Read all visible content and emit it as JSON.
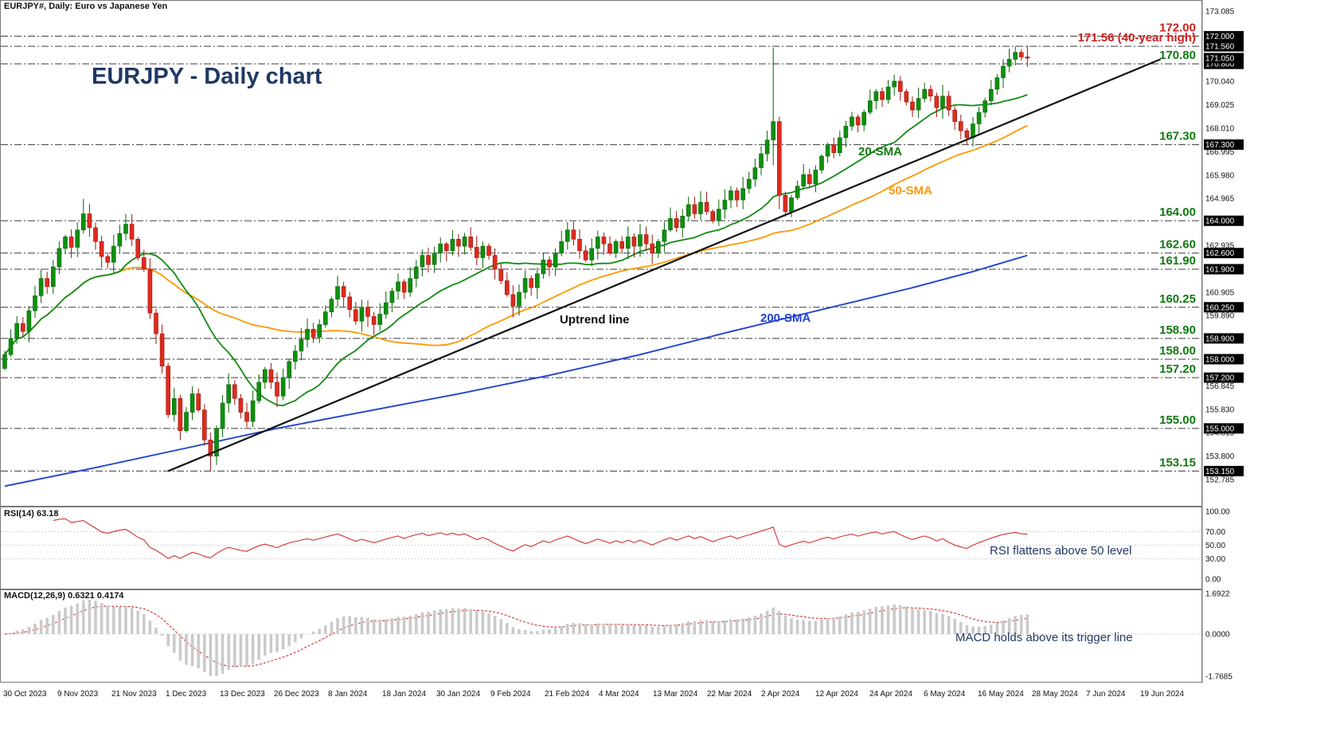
{
  "header": {
    "symbol_info": "EURJPY#, Daily:  Euro vs Japanese Yen"
  },
  "main": {
    "title": "EURJPY - Daily chart",
    "sma20_label": "20-SMA",
    "sma50_label": "50-SMA",
    "sma200_label": "200-SMA",
    "trendline_label": "Uptrend line",
    "current_price": "171.050"
  },
  "panels": {
    "rsi": {
      "label": "RSI(14) 63.18",
      "annotation": "RSI flattens above 50 level"
    },
    "macd": {
      "label": "MACD(12,26,9) 0.6321 0.4174",
      "annotation": "MACD holds above its trigger line"
    }
  },
  "colors": {
    "bull": "#0e8f0e",
    "bull_edge": "#066306",
    "bear": "#de2b1e",
    "bear_edge": "#9c150c",
    "sma20": "#128912",
    "sma50": "#ff9800",
    "sma200": "#2143cf",
    "trend": "#111111",
    "level_line": "#3a3a3a",
    "rsi_line": "#d03030",
    "macd_hist": "#c9c9c9",
    "macd_signal": "#d03030",
    "red_label": "#d02020",
    "green_label": "#0f7a0f",
    "navy": "#1f3864"
  },
  "chart_data": {
    "type": "candlestick",
    "symbol": "EURJPY",
    "timeframe": "Daily",
    "title": "EURJPY - Daily chart",
    "y_range": [
      152.785,
      173.085
    ],
    "first_open": 157.6,
    "closes": [
      158.2,
      158.9,
      159.55,
      159.2,
      160.1,
      160.75,
      161.5,
      161.15,
      162.0,
      162.8,
      163.3,
      162.85,
      163.6,
      164.3,
      163.7,
      163.1,
      162.45,
      162.2,
      162.9,
      163.45,
      163.85,
      163.2,
      162.4,
      161.9,
      160.0,
      159.1,
      157.7,
      155.6,
      156.3,
      154.9,
      155.7,
      156.5,
      155.8,
      154.5,
      153.8,
      155.0,
      156.1,
      156.9,
      156.3,
      155.7,
      155.3,
      156.2,
      157.0,
      157.55,
      157.0,
      156.4,
      157.2,
      157.9,
      158.35,
      158.85,
      159.3,
      158.95,
      159.5,
      160.05,
      160.6,
      161.15,
      160.7,
      160.15,
      159.65,
      160.25,
      159.85,
      159.5,
      159.95,
      160.45,
      160.95,
      161.35,
      160.9,
      161.5,
      162.0,
      162.5,
      162.1,
      162.6,
      163.0,
      162.7,
      163.2,
      162.9,
      163.3,
      162.85,
      162.4,
      162.9,
      162.5,
      161.9,
      161.4,
      160.8,
      160.3,
      160.9,
      161.5,
      161.1,
      161.7,
      162.3,
      162.0,
      162.6,
      163.1,
      163.6,
      163.2,
      162.7,
      162.3,
      162.8,
      163.3,
      163.0,
      162.6,
      163.1,
      162.8,
      163.3,
      162.9,
      163.4,
      163.0,
      162.6,
      163.1,
      163.6,
      164.1,
      163.7,
      164.2,
      164.7,
      164.3,
      164.8,
      164.4,
      164.0,
      164.5,
      164.9,
      165.3,
      164.9,
      165.4,
      165.8,
      166.3,
      166.9,
      167.5,
      168.3,
      165.1,
      164.4,
      165.0,
      165.5,
      166.0,
      165.6,
      166.2,
      166.8,
      167.3,
      166.95,
      167.6,
      168.1,
      168.5,
      168.15,
      168.7,
      169.2,
      169.6,
      169.25,
      169.8,
      170.05,
      169.6,
      169.15,
      168.8,
      169.3,
      169.7,
      169.4,
      168.9,
      169.4,
      168.8,
      168.3,
      167.9,
      167.6,
      168.2,
      168.7,
      169.2,
      169.7,
      170.2,
      170.7,
      171.0,
      171.3,
      171.1,
      171.05
    ],
    "wick_overrides": {
      "13": {
        "high": 164.95
      },
      "34": {
        "low": 153.15
      },
      "127": {
        "high": 171.5,
        "low": 166.4
      },
      "128": {
        "low": 164.5
      },
      "167": {
        "high": 171.56
      }
    },
    "sma200_points": [
      [
        0,
        152.5
      ],
      [
        15,
        153.3
      ],
      [
        30,
        154.15
      ],
      [
        45,
        155.0
      ],
      [
        60,
        155.75
      ],
      [
        75,
        156.5
      ],
      [
        90,
        157.3
      ],
      [
        105,
        158.2
      ],
      [
        120,
        159.2
      ],
      [
        135,
        160.15
      ],
      [
        150,
        161.1
      ],
      [
        160,
        161.8
      ],
      [
        169,
        162.5
      ]
    ],
    "trendline": {
      "from": {
        "day": 27,
        "price": 153.15
      },
      "to": {
        "day": 191,
        "price": 171.0
      }
    },
    "levels": [
      {
        "price": 172.0,
        "label": "172.00",
        "label_color": "#d02020"
      },
      {
        "price": 171.56,
        "label": "171.56 (40-year high)",
        "label_color": "#d02020"
      },
      {
        "price": 170.8,
        "label": "170.80",
        "label_color": "#0f7a0f"
      },
      {
        "price": 167.3,
        "label": "167.30",
        "label_color": "#0f7a0f"
      },
      {
        "price": 164.0,
        "label": "164.00",
        "label_color": "#0f7a0f"
      },
      {
        "price": 162.6,
        "label": "162.60",
        "label_color": "#0f7a0f"
      },
      {
        "price": 161.9,
        "label": "161.90",
        "label_color": "#0f7a0f"
      },
      {
        "price": 160.25,
        "label": "160.25",
        "label_color": "#0f7a0f"
      },
      {
        "price": 158.9,
        "label": "158.90",
        "label_color": "#0f7a0f"
      },
      {
        "price": 158.0,
        "label": "158.00",
        "label_color": "#0f7a0f"
      },
      {
        "price": 157.2,
        "label": "157.20",
        "label_color": "#0f7a0f"
      },
      {
        "price": 155.0,
        "label": "155.00",
        "label_color": "#0f7a0f"
      },
      {
        "price": 153.15,
        "label": "153.15",
        "label_color": "#0f7a0f"
      }
    ],
    "price_axis_ticks": [
      173.085,
      172.07,
      171.055,
      170.04,
      169.025,
      168.01,
      166.995,
      165.98,
      164.965,
      163.95,
      162.935,
      161.92,
      160.905,
      159.89,
      158.875,
      157.86,
      156.845,
      155.83,
      154.815,
      153.8,
      152.785
    ],
    "x_ticks": [
      "30 Oct 2023",
      "9 Nov 2023",
      "21 Nov 2023",
      "1 Dec 2023",
      "13 Dec 2023",
      "26 Dec 2023",
      "8 Jan 2024",
      "18 Jan 2024",
      "30 Jan 2024",
      "9 Feb 2024",
      "21 Feb 2024",
      "4 Mar 2024",
      "13 Mar 2024",
      "22 Mar 2024",
      "2 Apr 2024",
      "12 Apr 2024",
      "24 Apr 2024",
      "6 May 2024",
      "16 May 2024",
      "28 May 2024",
      "7 Jun 2024",
      "19 Jun 2024"
    ],
    "rsi": {
      "period": 14,
      "value": 63.18,
      "axis_levels": [
        100.0,
        70.0,
        50.0,
        30.0,
        0.0
      ]
    },
    "macd": {
      "fast": 12,
      "slow": 26,
      "signal_period": 9,
      "value": 0.6321,
      "signal_value": 0.4174,
      "axis_levels": [
        1.6922,
        0.0,
        -1.7685
      ]
    }
  }
}
